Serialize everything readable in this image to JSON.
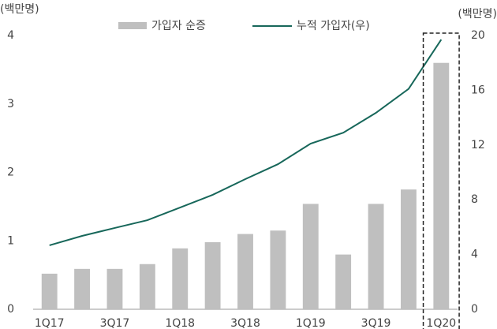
{
  "chart_data": {
    "type": "combo",
    "y_label": "(백만명)",
    "y2_label": "(백만명)",
    "categories": [
      "1Q17",
      null,
      "3Q17",
      null,
      "1Q18",
      null,
      "3Q18",
      null,
      "1Q19",
      null,
      "3Q19",
      null,
      "1Q20"
    ],
    "series": [
      {
        "name": "가입자 순증",
        "type": "bar",
        "axis": "y",
        "color": "#bfbfbf",
        "values": [
          0.52,
          0.59,
          0.59,
          0.66,
          0.89,
          0.98,
          1.1,
          1.15,
          1.54,
          0.8,
          1.54,
          1.75,
          3.6
        ]
      },
      {
        "name": "누적 가입자(우)",
        "type": "line",
        "axis": "y2",
        "color": "#17675a",
        "values": [
          4.67,
          5.36,
          5.94,
          6.51,
          7.43,
          8.36,
          9.51,
          10.6,
          12.1,
          12.9,
          14.35,
          16.1,
          19.7
        ]
      }
    ],
    "ylim": [
      0,
      4
    ],
    "yticks": [
      0,
      1,
      2,
      3,
      4
    ],
    "y2lim": [
      0,
      20
    ],
    "y2ticks": [
      0,
      4,
      8,
      12,
      16,
      20
    ],
    "grid": false,
    "legend": "top"
  }
}
